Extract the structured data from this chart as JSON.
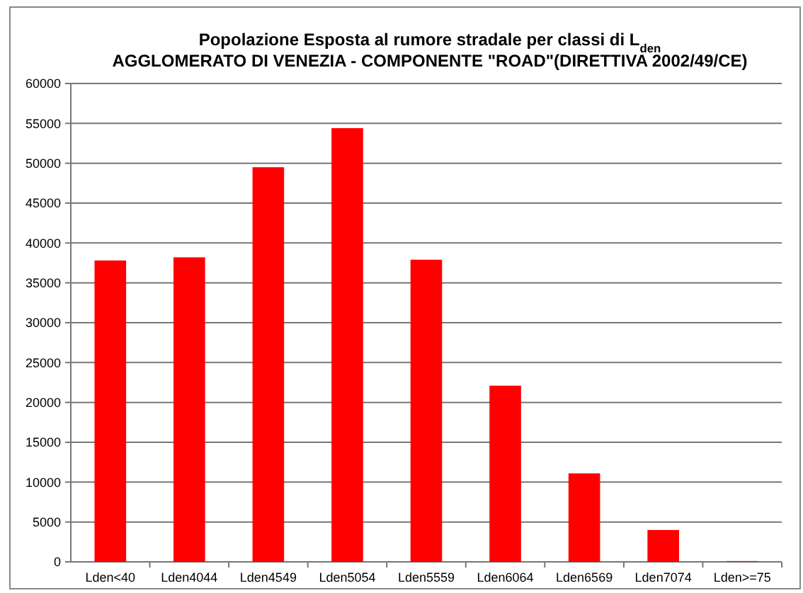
{
  "chart_data": {
    "type": "bar",
    "title": "Popolazione Esposta al rumore stradale per classi di L$_{den}$",
    "subtitle": "AGGLOMERATO DI VENEZIA - COMPONENTE \"ROAD\"(DIRETTIVA 2002/49/CE)",
    "categories": [
      "Lden<40",
      "Lden4044",
      "Lden4549",
      "Lden5054",
      "Lden5559",
      "Lden6064",
      "Lden6569",
      "Lden7074",
      "Lden>=75"
    ],
    "values": [
      37800,
      38200,
      49500,
      54400,
      37900,
      22100,
      11100,
      4000,
      100
    ],
    "color": "#ff0000",
    "ylim": [
      0,
      60000
    ],
    "yticks": [
      0,
      5000,
      10000,
      15000,
      20000,
      25000,
      30000,
      35000,
      40000,
      45000,
      50000,
      55000,
      60000
    ],
    "grid": "y"
  }
}
